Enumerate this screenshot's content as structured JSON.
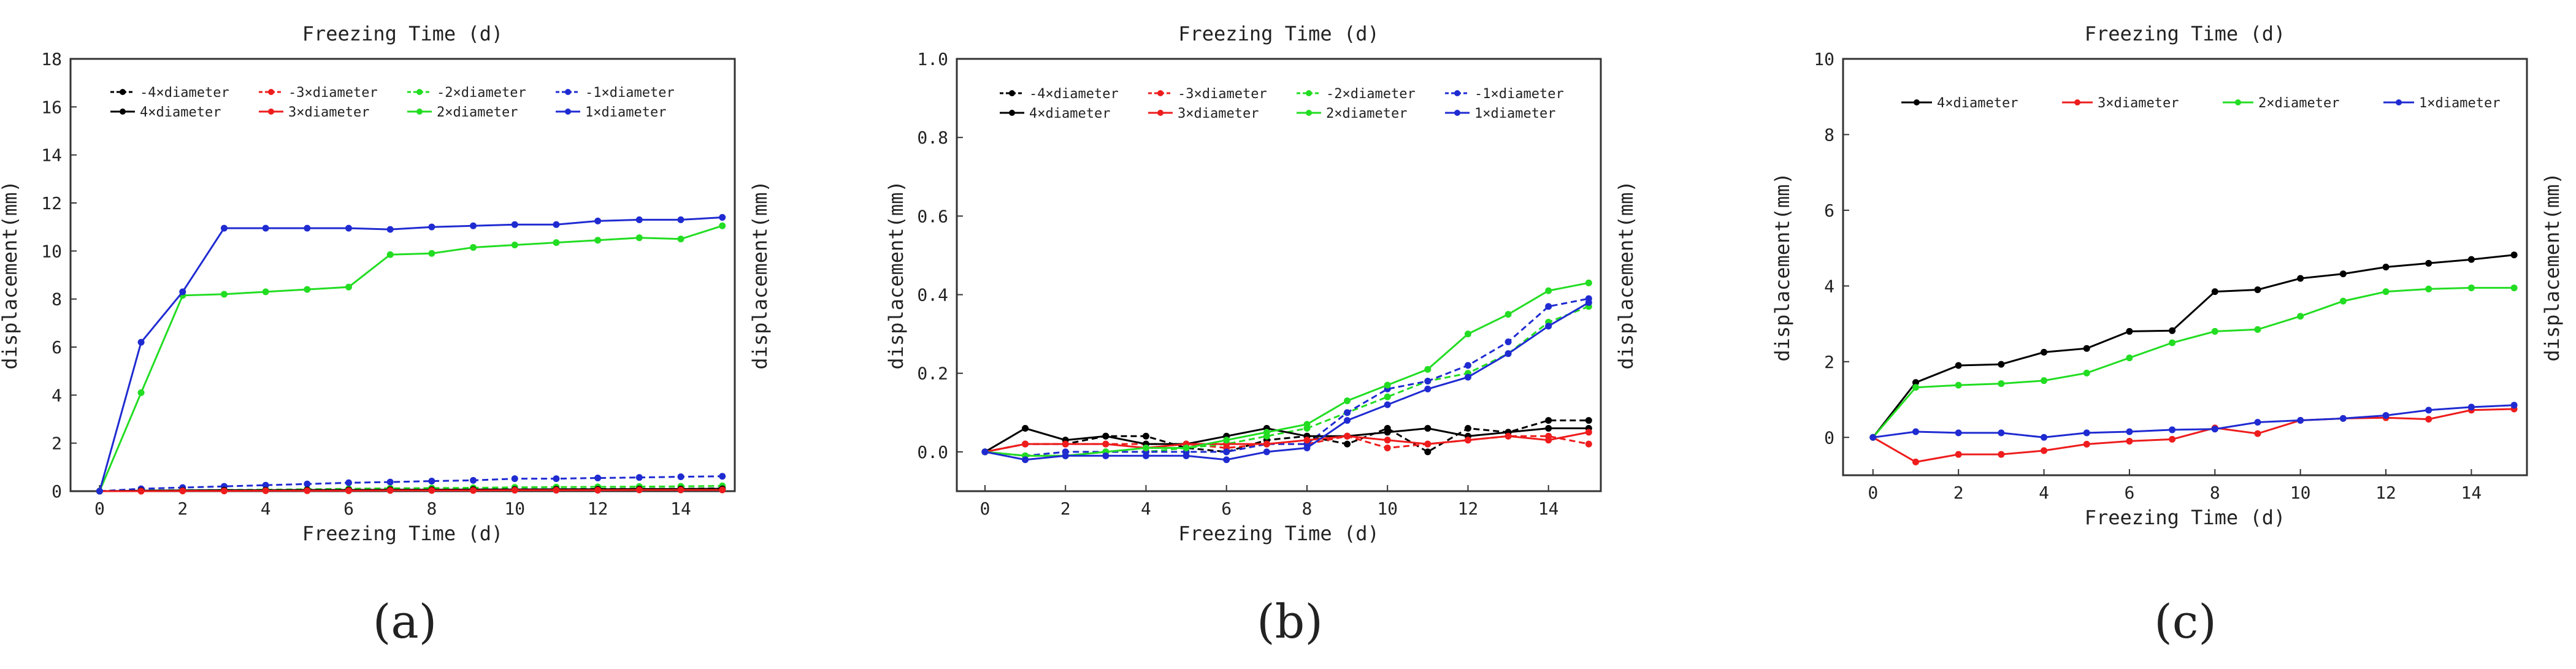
{
  "figure": {
    "panel_labels": [
      "(a)",
      "(b)",
      "(c)"
    ],
    "axis_title_x": "Freezing Time (d)",
    "axis_title_y": "displacement(mm)"
  },
  "chart_data": [
    {
      "type": "line",
      "panel": "(a)",
      "title": "Freezing Time (d)",
      "xlabel": "Freezing Time (d)",
      "ylabel": "displacement(mm)",
      "right_ylabel": "displacement(mm)",
      "xlim": [
        -0.7,
        15.3
      ],
      "ylim": [
        0,
        18
      ],
      "x_ticks": [
        0,
        2,
        4,
        6,
        8,
        10,
        12,
        14
      ],
      "y_ticks": [
        0,
        2,
        4,
        6,
        8,
        10,
        12,
        14,
        16,
        18
      ],
      "y_tick_labels": [
        "0",
        "2",
        "4",
        "6",
        "8",
        "10",
        "12",
        "14",
        "16",
        "18"
      ],
      "legend": "top-left",
      "legend_cols": 4,
      "grid": false,
      "x": [
        0,
        1,
        2,
        3,
        4,
        5,
        6,
        7,
        8,
        9,
        10,
        11,
        12,
        13,
        14,
        15
      ],
      "series": [
        {
          "name": "-4×diameter",
          "color": "#000000",
          "dashed": true,
          "values": [
            0,
            0.02,
            0.03,
            0.03,
            0.04,
            0.04,
            0.05,
            0.05,
            0.06,
            0.06,
            0.08,
            0.08,
            0.09,
            0.1,
            0.1,
            0.12
          ]
        },
        {
          "name": "-3×diameter",
          "color": "#ee1c1c",
          "dashed": true,
          "values": [
            0,
            0.02,
            0.02,
            0.02,
            0.03,
            0.03,
            0.03,
            0.04,
            0.04,
            0.04,
            0.05,
            0.05,
            0.05,
            0.06,
            0.06,
            0.06
          ]
        },
        {
          "name": "-2×diameter",
          "color": "#22dd22",
          "dashed": true,
          "values": [
            0,
            0.03,
            0.04,
            0.05,
            0.06,
            0.08,
            0.1,
            0.12,
            0.13,
            0.14,
            0.16,
            0.17,
            0.18,
            0.19,
            0.2,
            0.22
          ]
        },
        {
          "name": "-1×diameter",
          "color": "#1f2bd1",
          "dashed": true,
          "values": [
            0,
            0.1,
            0.15,
            0.2,
            0.25,
            0.3,
            0.35,
            0.38,
            0.42,
            0.45,
            0.52,
            0.52,
            0.55,
            0.57,
            0.6,
            0.62
          ]
        },
        {
          "name": "4×diameter",
          "color": "#000000",
          "dashed": false,
          "values": [
            0,
            0.02,
            0.03,
            0.04,
            0.04,
            0.05,
            0.05,
            0.06,
            0.06,
            0.07,
            0.07,
            0.08,
            0.08,
            0.09,
            0.09,
            0.1
          ]
        },
        {
          "name": "3×diameter",
          "color": "#ee1c1c",
          "dashed": false,
          "values": [
            0,
            0.0,
            0.01,
            0.01,
            0.02,
            0.02,
            0.02,
            0.03,
            0.03,
            0.03,
            0.04,
            0.04,
            0.04,
            0.05,
            0.05,
            0.05
          ]
        },
        {
          "name": "2×diameter",
          "color": "#22dd22",
          "dashed": false,
          "values": [
            0,
            4.1,
            8.15,
            8.2,
            8.3,
            8.4,
            8.5,
            9.85,
            9.9,
            10.15,
            10.25,
            10.35,
            10.45,
            10.55,
            10.5,
            11.05
          ]
        },
        {
          "name": "1×diameter",
          "color": "#1f2bd1",
          "dashed": false,
          "values": [
            0,
            6.2,
            8.3,
            10.95,
            10.95,
            10.95,
            10.95,
            10.9,
            11.0,
            11.05,
            11.1,
            11.1,
            11.25,
            11.3,
            11.3,
            11.4
          ]
        }
      ]
    },
    {
      "type": "line",
      "panel": "(b)",
      "title": "Freezing Time (d)",
      "xlabel": "Freezing Time (d)",
      "ylabel": "displacement(mm)",
      "right_ylabel": "displacement(mm)",
      "xlim": [
        -0.7,
        15.3
      ],
      "ylim": [
        -0.1,
        1.0
      ],
      "x_ticks": [
        0,
        2,
        4,
        6,
        8,
        10,
        12,
        14
      ],
      "y_ticks": [
        0,
        0.2,
        0.4,
        0.6,
        0.8,
        1.0
      ],
      "y_tick_labels": [
        "0.0",
        "0.2",
        "0.4",
        "0.6",
        "0.8",
        "1.0"
      ],
      "legend": "top-left",
      "legend_cols": 4,
      "grid": false,
      "x": [
        0,
        1,
        2,
        3,
        4,
        5,
        6,
        7,
        8,
        9,
        10,
        11,
        12,
        13,
        14,
        15
      ],
      "series": [
        {
          "name": "-4×diameter",
          "color": "#000000",
          "dashed": true,
          "values": [
            0,
            0.02,
            0.02,
            0.04,
            0.04,
            0.01,
            0.0,
            0.03,
            0.04,
            0.02,
            0.06,
            0.0,
            0.06,
            0.05,
            0.08,
            0.08
          ]
        },
        {
          "name": "-3×diameter",
          "color": "#ee1c1c",
          "dashed": true,
          "values": [
            0,
            0.02,
            0.02,
            0.02,
            0.02,
            0.02,
            0.01,
            0.02,
            0.02,
            0.04,
            0.01,
            0.02,
            0.03,
            0.04,
            0.04,
            0.02
          ]
        },
        {
          "name": "-2×diameter",
          "color": "#22dd22",
          "dashed": true,
          "values": [
            0,
            -0.01,
            -0.01,
            0.0,
            0.0,
            0.01,
            0.02,
            0.04,
            0.06,
            0.1,
            0.14,
            0.18,
            0.2,
            0.25,
            0.33,
            0.37
          ]
        },
        {
          "name": "-1×diameter",
          "color": "#1f2bd1",
          "dashed": true,
          "values": [
            0,
            -0.01,
            0.0,
            0.0,
            0.0,
            0.0,
            0.0,
            0.02,
            0.02,
            0.1,
            0.16,
            0.18,
            0.22,
            0.28,
            0.37,
            0.39
          ]
        },
        {
          "name": "4×diameter",
          "color": "#000000",
          "dashed": false,
          "values": [
            0,
            0.06,
            0.03,
            0.04,
            0.02,
            0.02,
            0.04,
            0.06,
            0.04,
            0.04,
            0.05,
            0.06,
            0.04,
            0.05,
            0.06,
            0.06
          ]
        },
        {
          "name": "3×diameter",
          "color": "#ee1c1c",
          "dashed": false,
          "values": [
            0,
            0.02,
            0.02,
            0.02,
            0.01,
            0.02,
            0.02,
            0.02,
            0.03,
            0.04,
            0.03,
            0.02,
            0.03,
            0.04,
            0.03,
            0.05
          ]
        },
        {
          "name": "2×diameter",
          "color": "#22dd22",
          "dashed": false,
          "values": [
            0,
            -0.01,
            -0.01,
            0.0,
            0.01,
            0.01,
            0.03,
            0.05,
            0.07,
            0.13,
            0.17,
            0.21,
            0.3,
            0.35,
            0.41,
            0.43
          ]
        },
        {
          "name": "1×diameter",
          "color": "#1f2bd1",
          "dashed": false,
          "values": [
            0,
            -0.02,
            -0.01,
            -0.01,
            -0.01,
            -0.01,
            -0.02,
            0.0,
            0.01,
            0.08,
            0.12,
            0.16,
            0.19,
            0.25,
            0.32,
            0.38
          ]
        }
      ]
    },
    {
      "type": "line",
      "panel": "(c)",
      "title": "Freezing Time (d)",
      "xlabel": "Freezing Time (d)",
      "ylabel": "displacement(mm)",
      "right_ylabel": "displacement(mm)",
      "xlim": [
        -0.7,
        15.3
      ],
      "ylim": [
        -1,
        10
      ],
      "x_ticks": [
        0,
        2,
        4,
        6,
        8,
        10,
        12,
        14
      ],
      "y_ticks": [
        0,
        2,
        4,
        6,
        8,
        10
      ],
      "y_tick_labels": [
        "0",
        "2",
        "4",
        "6",
        "8",
        "10"
      ],
      "legend": "top-left",
      "legend_cols": 4,
      "grid": false,
      "x": [
        0,
        1,
        2,
        3,
        4,
        5,
        6,
        7,
        8,
        9,
        10,
        11,
        12,
        13,
        14,
        15
      ],
      "series": [
        {
          "name": "4×diameter",
          "color": "#000000",
          "dashed": false,
          "values": [
            0,
            1.45,
            1.9,
            1.93,
            2.25,
            2.35,
            2.8,
            2.82,
            3.85,
            3.9,
            4.2,
            4.32,
            4.5,
            4.6,
            4.7,
            4.82
          ]
        },
        {
          "name": "3×diameter",
          "color": "#ee1c1c",
          "dashed": false,
          "values": [
            0,
            -0.65,
            -0.45,
            -0.45,
            -0.35,
            -0.18,
            -0.1,
            -0.05,
            0.25,
            0.1,
            0.45,
            0.5,
            0.52,
            0.48,
            0.72,
            0.75
          ]
        },
        {
          "name": "2×diameter",
          "color": "#22dd22",
          "dashed": false,
          "values": [
            0,
            1.32,
            1.38,
            1.42,
            1.5,
            1.7,
            2.1,
            2.5,
            2.8,
            2.85,
            3.2,
            3.6,
            3.85,
            3.92,
            3.95,
            3.95
          ]
        },
        {
          "name": "1×diameter",
          "color": "#1f2bd1",
          "dashed": false,
          "values": [
            0,
            0.15,
            0.12,
            0.12,
            0.0,
            0.12,
            0.15,
            0.2,
            0.22,
            0.4,
            0.45,
            0.5,
            0.58,
            0.72,
            0.8,
            0.85
          ]
        }
      ]
    }
  ]
}
